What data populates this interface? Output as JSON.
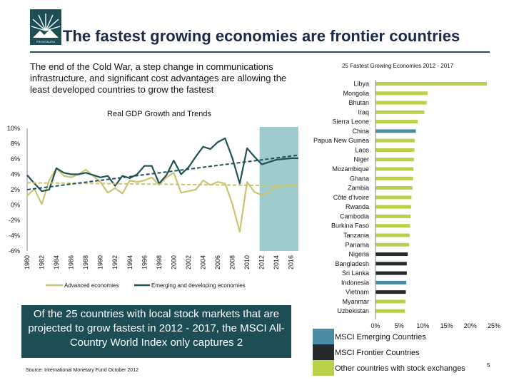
{
  "title": "The fastest growing economies are frontier countries",
  "intro": "The end of the Cold War, a step change in communications infrastructure, and significant cost advantages are allowing the least developed countries to grow the fastest",
  "callout": "Of the 25 countries with local stock markets that are projected to grow fastest in 2012 - 2017, the MSCI All-Country World Index only captures 2",
  "source": "Source: International Monetary Fund October 2012",
  "page_number": "5",
  "logo_text": "FRONTAURA",
  "colors": {
    "brand": "#1d4e56",
    "advanced": "#c9c472",
    "emerging": "#1f5257",
    "forecast_band": "#9ecbcd",
    "msci_em": "#4a8ba6",
    "msci_frontier": "#252a2c",
    "other": "#b9d14a"
  },
  "chart_data": [
    {
      "type": "line",
      "title": "Real GDP Growth and Trends",
      "x": [
        1980,
        1981,
        1982,
        1983,
        1984,
        1985,
        1986,
        1987,
        1988,
        1989,
        1990,
        1991,
        1992,
        1993,
        1994,
        1995,
        1996,
        1997,
        1998,
        1999,
        2000,
        2001,
        2002,
        2003,
        2004,
        2005,
        2006,
        2007,
        2008,
        2009,
        2010,
        2011,
        2012,
        2013,
        2014,
        2015,
        2016,
        2017
      ],
      "x_tick_labels": [
        "1980",
        "1982",
        "1984",
        "1986",
        "1988",
        "1990",
        "1992",
        "1994",
        "1996",
        "1998",
        "2000",
        "2002",
        "2004",
        "2006",
        "2008",
        "2010",
        "2012",
        "2014",
        "2016"
      ],
      "y_tick_labels": [
        "10%",
        "8%",
        "6%",
        "4%",
        "2%",
        "0%",
        "-2%",
        "-4%",
        "-6%"
      ],
      "ylim": [
        -6,
        10
      ],
      "forecast_range": [
        2012,
        2017
      ],
      "series": [
        {
          "name": "Advanced economies",
          "values": [
            1.2,
            2.1,
            0.1,
            3.2,
            4.8,
            3.8,
            3.6,
            4.0,
            4.6,
            3.8,
            3.0,
            1.6,
            2.2,
            1.5,
            3.2,
            3.0,
            3.2,
            3.6,
            2.6,
            3.6,
            4.2,
            1.6,
            1.8,
            2.0,
            3.2,
            2.6,
            3.0,
            2.8,
            0.1,
            -3.5,
            3.0,
            1.7,
            1.3,
            1.7,
            2.3,
            2.5,
            2.6,
            2.6
          ]
        },
        {
          "name": "Emerging and developing economies",
          "values": [
            3.9,
            2.8,
            1.8,
            2.0,
            4.8,
            4.2,
            4.0,
            4.0,
            4.2,
            3.9,
            3.6,
            3.8,
            2.5,
            3.8,
            3.5,
            4.0,
            5.1,
            5.1,
            2.8,
            3.9,
            5.8,
            4.0,
            4.9,
            6.3,
            7.6,
            7.3,
            8.2,
            8.7,
            6.1,
            2.8,
            7.4,
            6.3,
            5.3,
            5.6,
            5.9,
            6.0,
            6.1,
            6.1
          ]
        },
        {
          "name": "Advanced trend",
          "dashed": true,
          "values_at_ends": [
            2.9,
            2.5
          ]
        },
        {
          "name": "Emerging trend",
          "dashed": true,
          "values_at_ends": [
            2.0,
            6.5
          ]
        }
      ],
      "legend": [
        {
          "label": "Advanced economies"
        },
        {
          "label": "Emerging and developing economies"
        }
      ]
    },
    {
      "type": "bar",
      "orientation": "horizontal",
      "title": "25 Fastest Growing Economies 2012 - 2017",
      "categories": [
        "Libya",
        "Mongolia",
        "Bhutan",
        "Iraq",
        "Sierra Leone",
        "China",
        "Papua New Guinea",
        "Laos",
        "Niger",
        "Mozambique",
        "Ghana",
        "Zambia",
        "Côte d'Ivoire",
        "Rwanda",
        "Cambodia",
        "Burkina Faso",
        "Tanzania",
        "Panama",
        "Nigeria",
        "Bangladesh",
        "Sri Lanka",
        "Indonesia",
        "Vietnam",
        "Myanmar",
        "Uzbekistan"
      ],
      "values": [
        23.5,
        11.0,
        10.8,
        10.3,
        8.9,
        8.5,
        8.3,
        8.2,
        8.1,
        8.0,
        7.9,
        7.8,
        7.6,
        7.5,
        7.4,
        7.3,
        7.2,
        7.1,
        6.8,
        6.6,
        6.6,
        6.5,
        6.4,
        6.3,
        6.2
      ],
      "classification": [
        "other",
        "other",
        "other",
        "other",
        "other",
        "msci_em",
        "other",
        "other",
        "other",
        "other",
        "other",
        "other",
        "other",
        "other",
        "other",
        "other",
        "other",
        "other",
        "msci_frontier",
        "msci_frontier",
        "msci_frontier",
        "msci_em",
        "msci_frontier",
        "other",
        "other"
      ],
      "x_tick_labels": [
        "0%",
        "5%",
        "10%",
        "15%",
        "20%",
        "25%"
      ],
      "xlim": [
        0,
        25
      ],
      "legend": [
        {
          "key": "msci_em",
          "label": "MSCI Emerging Countries"
        },
        {
          "key": "msci_frontier",
          "label": "MSCI Frontier Countries"
        },
        {
          "key": "other",
          "label": "Other countries with stock exchanges"
        }
      ]
    }
  ]
}
